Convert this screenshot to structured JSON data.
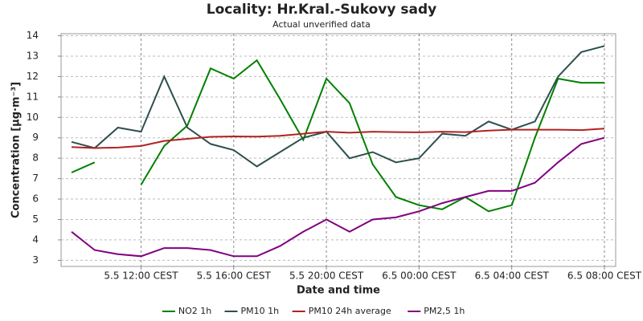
{
  "chart_data": {
    "type": "line",
    "title": "Locality: Hr.Kral.-Sukovy sady",
    "subtitle": "Actual unverified data",
    "y_label": "Concentration [µg·m⁻³]",
    "x_label": "Date and time",
    "categories": [
      null,
      null,
      null,
      "5.5 12:00 CEST",
      null,
      null,
      null,
      "5.5 16:00 CEST",
      null,
      null,
      null,
      "5.5 20:00 CEST",
      null,
      null,
      null,
      "6.5 00:00 CEST",
      null,
      null,
      null,
      "6.5 04:00 CEST",
      null,
      null,
      null,
      "6.5 08:00 CEST"
    ],
    "ylim": [
      2.7,
      14.1
    ],
    "yticks": [
      3,
      4,
      5,
      6,
      7,
      8,
      9,
      10,
      11,
      12,
      13,
      14
    ],
    "grid": true,
    "legend": "bottom",
    "series": [
      {
        "name": "NO2 1h",
        "color": "#008000",
        "values": [
          7.3,
          7.8,
          null,
          6.7,
          8.6,
          9.6,
          12.4,
          11.9,
          12.8,
          10.9,
          8.9,
          11.9,
          10.7,
          7.7,
          6.1,
          5.7,
          5.5,
          6.1,
          5.4,
          5.7,
          9.0,
          11.9,
          11.7,
          11.7
        ]
      },
      {
        "name": "PM10 1h",
        "color": "#2f4f4f",
        "values": [
          8.8,
          8.5,
          9.5,
          9.3,
          12.0,
          9.5,
          8.7,
          8.4,
          7.6,
          8.3,
          9.0,
          9.3,
          8.0,
          8.3,
          7.8,
          8.0,
          9.2,
          9.1,
          9.8,
          9.4,
          9.8,
          12.0,
          13.2,
          13.5
        ]
      },
      {
        "name": "PM10 24h average",
        "color": "#b22222",
        "values": [
          8.55,
          8.5,
          8.52,
          8.6,
          8.85,
          8.95,
          9.05,
          9.07,
          9.06,
          9.1,
          9.2,
          9.3,
          9.25,
          9.3,
          9.28,
          9.27,
          9.3,
          9.28,
          9.35,
          9.4,
          9.4,
          9.4,
          9.38,
          9.45
        ]
      },
      {
        "name": "PM2,5 1h",
        "color": "#800080",
        "values": [
          4.4,
          3.5,
          3.3,
          3.2,
          3.6,
          3.6,
          3.5,
          3.2,
          3.2,
          3.7,
          4.4,
          5.0,
          4.4,
          5.0,
          5.1,
          5.4,
          5.8,
          6.1,
          6.4,
          6.4,
          6.8,
          7.8,
          8.7,
          9.0
        ]
      }
    ]
  }
}
